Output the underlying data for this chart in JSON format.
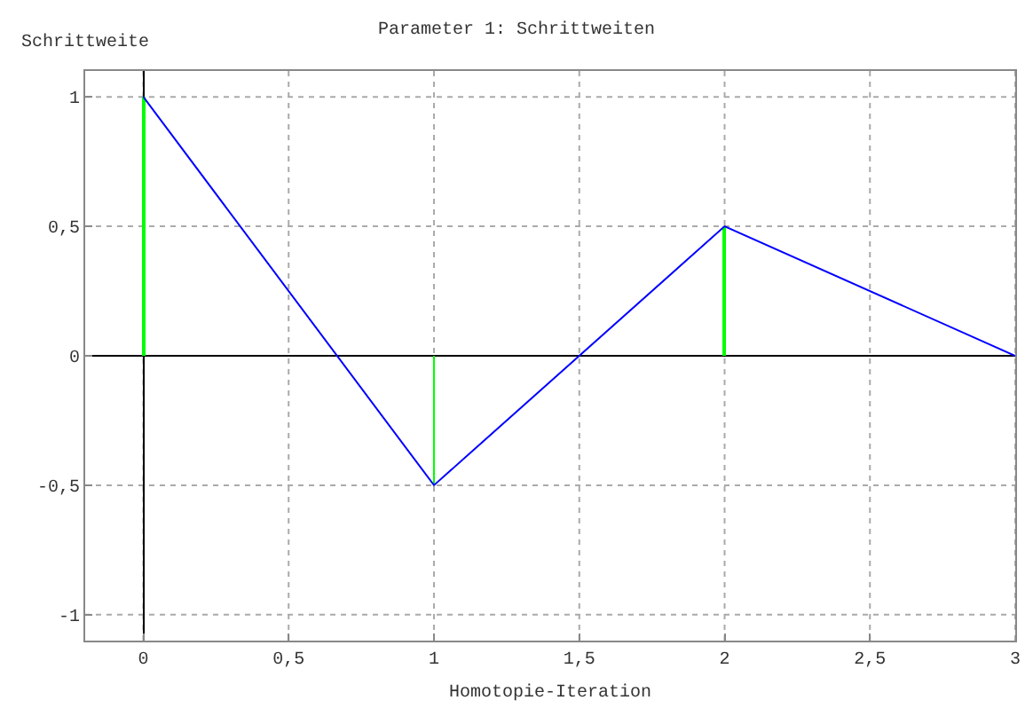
{
  "chart_data": {
    "type": "line",
    "title": "Parameter 1: Schrittweiten",
    "xlabel": "Homotopie-Iteration",
    "ylabel": "Schrittweite",
    "series": [
      {
        "type": "bar",
        "x": [
          0,
          1,
          2
        ],
        "values": [
          1,
          -0.5,
          0.5
        ],
        "color": "#00ff00"
      },
      {
        "x": [
          0,
          1,
          2,
          3
        ],
        "values": [
          1,
          -0.5,
          0.5,
          0
        ],
        "color": "#0000ff"
      }
    ],
    "xlim": [
      -0.2,
      3
    ],
    "ylim": [
      -1.1,
      1.1
    ],
    "xticks": [
      0,
      {
        "value": 0.5,
        "label": "0,5"
      },
      1,
      {
        "value": 1.5,
        "label": "1,5"
      },
      2,
      {
        "value": 2.5,
        "label": "2,5"
      },
      3
    ],
    "yticks": [
      -1,
      {
        "value": -0.5,
        "label": "-0,5"
      },
      0,
      {
        "value": 0.5,
        "label": "0,5"
      },
      1
    ],
    "grid": true,
    "marker": "none",
    "line_style": "solid"
  }
}
